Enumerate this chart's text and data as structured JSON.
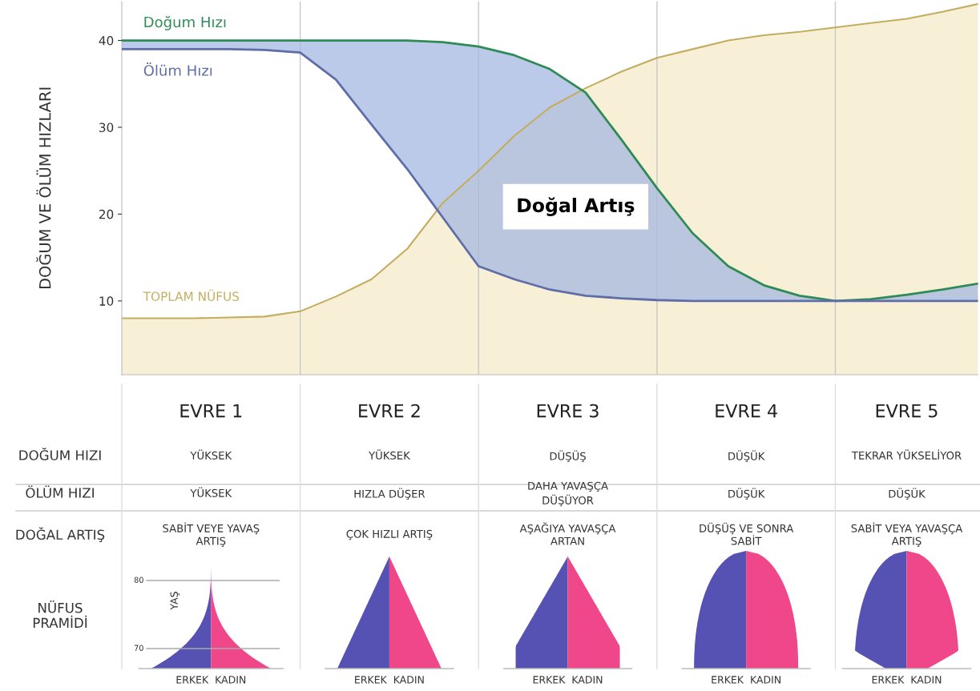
{
  "chart_data": [
    {
      "type": "line",
      "ylabel": "DOĞUM VE ÖLÜM HIZLARI",
      "ylim": [
        1.5,
        44.5
      ],
      "yticks": [
        10,
        20,
        30,
        40
      ],
      "tick_labels": "y",
      "grid": "x",
      "categories": [
        null,
        null,
        null,
        null,
        null,
        null,
        null,
        null,
        null,
        null,
        null,
        null,
        null,
        null,
        null,
        null,
        null,
        null,
        null,
        null,
        null,
        null,
        null,
        null,
        null
      ],
      "series": [
        {
          "name": "Doğum Hızı",
          "color": "#2e8b57",
          "values": [
            40,
            40,
            40,
            40,
            40,
            40,
            40,
            40,
            40,
            39.8,
            39.3,
            38.3,
            36.7,
            34,
            28.6,
            23,
            17.8,
            14,
            11.8,
            10.6,
            10,
            10.2,
            10.7,
            11.3,
            12
          ]
        },
        {
          "name": "Ölüm Hızı",
          "color": "#5f6ea8",
          "values": [
            39,
            39,
            39,
            39,
            38.9,
            38.6,
            35.5,
            30.3,
            25.2,
            19.6,
            14,
            12.5,
            11.3,
            10.6,
            10.3,
            10.1,
            10,
            10,
            10,
            10,
            10,
            10,
            10,
            10,
            10
          ]
        },
        {
          "name": "TOPLAM NÜFUS",
          "type": "area",
          "color": "#c4ad5e",
          "values": [
            8,
            8,
            8,
            8.1,
            8.2,
            8.8,
            10.5,
            12.5,
            16,
            21.3,
            25,
            29,
            32.3,
            34.5,
            36.4,
            38,
            39,
            40,
            40.6,
            41,
            41.5,
            42,
            42.5,
            43.3,
            44.2
          ]
        }
      ],
      "annotations": [
        "Doğal Artış"
      ]
    },
    {
      "type": "other",
      "categories": [
        "EVRE 1",
        "EVRE 2",
        "EVRE 3",
        "EVRE 4",
        "EVRE 5"
      ],
      "y_categories": [
        "DOĞUM HIZI",
        "ÖLÜM HIZI",
        "DOĞAL ARTIŞ",
        "NÜFUS\nPRAMİDİ"
      ],
      "cell_labels": [
        [
          "YÜKSEK",
          "YÜKSEK",
          "DÜŞÜŞ",
          "DÜŞÜK",
          "TEKRAR YÜKSELİYOR"
        ],
        [
          "YÜKSEK",
          "HIZLA DÜŞER",
          "DAHA YAVAŞÇA\nDÜŞÜYOR",
          "DÜŞÜK",
          "DÜŞÜK"
        ],
        [
          "SABİT VEYE YAVAŞ\nARTIŞ",
          "ÇOK HIZLI ARTIŞ",
          "AŞAĞIYA YAVAŞÇA\nARTAN",
          "DÜŞÜŞ VE SONRA\nSABİT",
          "SABİT VEYA YAVAŞÇA\nARTIŞ"
        ],
        [
          null,
          null,
          null,
          null,
          null
        ]
      ],
      "annotations": [
        "ERKEK  KADIN",
        "ERKEK  KADIN",
        "ERKEK  KADIN",
        "ERKEK  KADIN",
        "ERKEK  KADIN",
        "YAŞ",
        "80",
        "70"
      ]
    }
  ]
}
